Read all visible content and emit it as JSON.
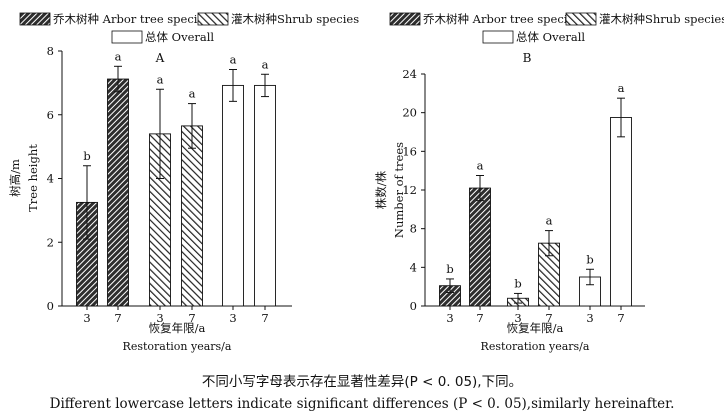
{
  "legend_labels": {
    "arbor": "乔木树种 Arbor tree species",
    "shrub": "灌木树种Shrub species",
    "overall": "总体 Overall"
  },
  "colors": {
    "arbor_fill": "#3a3a3a",
    "shrub_fill": "#ffffff",
    "overall_fill": "#ffffff",
    "stroke": "#111111"
  },
  "chart_data": [
    {
      "type": "bar",
      "panel_label": "A",
      "categories": [
        "3",
        "7",
        "3",
        "7",
        "3",
        "7"
      ],
      "groups": [
        "arbor",
        "arbor",
        "shrub",
        "shrub",
        "overall",
        "overall"
      ],
      "values": [
        3.25,
        7.12,
        5.4,
        5.65,
        6.92,
        6.92
      ],
      "errors": [
        1.15,
        0.4,
        1.4,
        0.7,
        0.5,
        0.35
      ],
      "sig_letters": [
        "b",
        "a",
        "a",
        "a",
        "a",
        "a"
      ],
      "ylim": [
        0,
        8
      ],
      "yticks": [
        0,
        2,
        4,
        6,
        8
      ],
      "ylabel_cn": "树高/m",
      "ylabel_en": "Tree height",
      "xlabel_cn": "恢复年限/a",
      "xlabel_en": "Restoration years/a",
      "grid": false,
      "legend": "top-left"
    },
    {
      "type": "bar",
      "panel_label": "B",
      "categories": [
        "3",
        "7",
        "3",
        "7",
        "3",
        "7"
      ],
      "groups": [
        "arbor",
        "arbor",
        "shrub",
        "shrub",
        "overall",
        "overall"
      ],
      "values": [
        2.1,
        12.2,
        0.8,
        6.5,
        3.0,
        19.5
      ],
      "errors": [
        0.7,
        1.3,
        0.5,
        1.3,
        0.8,
        2.0
      ],
      "sig_letters": [
        "b",
        "a",
        "b",
        "a",
        "b",
        "a"
      ],
      "ylim": [
        0,
        24
      ],
      "yticks": [
        0,
        4,
        8,
        12,
        16,
        20,
        24
      ],
      "ylabel_cn": "株数/株",
      "ylabel_en": "Number of trees",
      "xlabel_cn": "恢复年限/a",
      "xlabel_en": "Restoration years/a",
      "grid": false,
      "legend": "top"
    }
  ],
  "captions": {
    "cn": "不同小写字母表示存在显著性差异(P < 0. 05),下同。",
    "en": "Different lowercase letters indicate significant differences (P < 0. 05),similarly hereinafter."
  }
}
